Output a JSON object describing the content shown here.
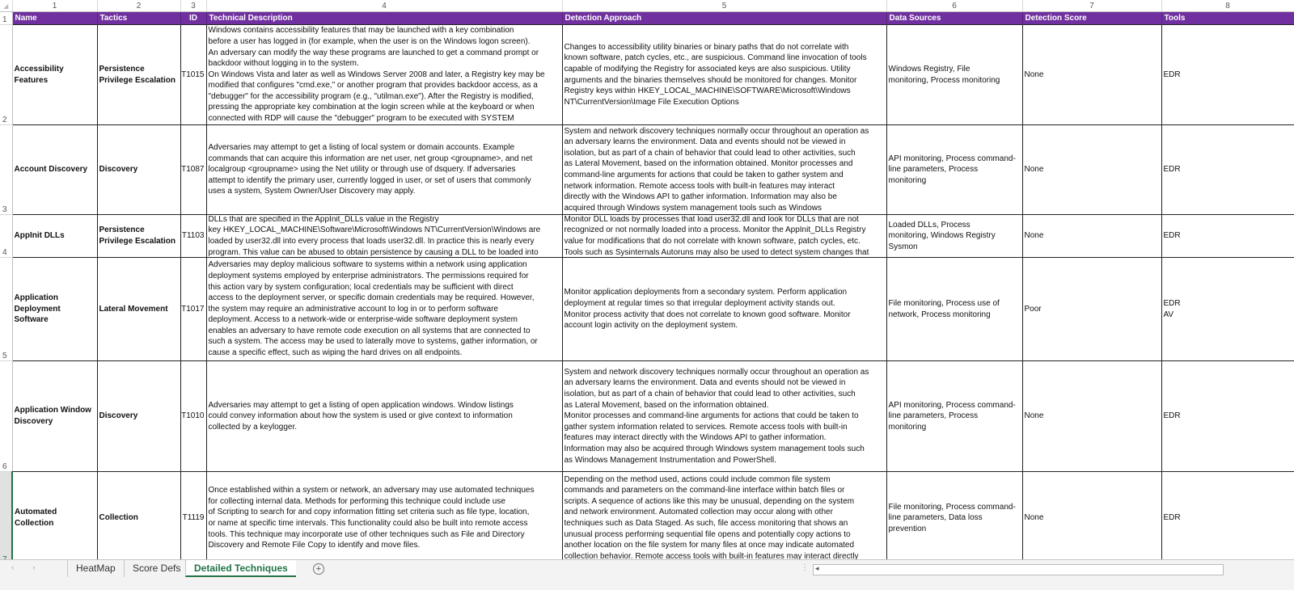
{
  "column_numbers": [
    "1",
    "2",
    "3",
    "4",
    "5",
    "6",
    "7",
    "8"
  ],
  "header_row_number": "1",
  "headers": [
    "Name",
    "Tactics",
    "ID",
    "Technical Description",
    "Detection Approach",
    "Data Sources",
    "Detection Score",
    "Tools"
  ],
  "header_color": "#7030A0",
  "rows": [
    {
      "row_number": "2",
      "name": "Accessibility Features",
      "tactics": "Persistence\nPrivilege Escalation",
      "id": "T1015",
      "description": "Windows contains accessibility features that may be launched with a key combination\nbefore a user has logged in (for example, when the user is on the Windows logon screen).\nAn adversary can modify the way these programs are launched to get a command prompt or\nbackdoor without logging in to the system.\nOn Windows Vista and later as well as Windows Server 2008 and later, a Registry key may be\nmodified that configures \"cmd.exe,\" or another program that provides backdoor access, as a\n\"debugger\" for the accessibility program (e.g., \"utilman.exe\"). After the Registry is modified,\npressing the appropriate key combination at the login screen while at the keyboard or when\nconnected with RDP will cause the \"debugger\" program to be executed with SYSTEM",
      "detection": "Changes to accessibility utility binaries or binary paths that do not correlate with\nknown software, patch cycles, etc., are suspicious. Command line invocation of tools\ncapable of modifying the Registry for associated keys are also suspicious. Utility\narguments and the binaries themselves should be monitored for changes. Monitor\nRegistry keys within HKEY_LOCAL_MACHINE\\SOFTWARE\\Microsoft\\Windows\nNT\\CurrentVersion\\Image File Execution Options",
      "data_sources": "Windows Registry, File\nmonitoring, Process monitoring",
      "score": "None",
      "tools": "EDR"
    },
    {
      "row_number": "3",
      "name": "Account Discovery",
      "tactics": "Discovery",
      "id": "T1087",
      "description": "Adversaries may attempt to get a listing of local system or domain accounts. Example\ncommands that can acquire this information are net user, net group <groupname>, and net\nlocalgroup <groupname> using the Net utility or through use of dsquery. If adversaries\nattempt to identify the primary user, currently logged in user, or set of users that commonly\nuses a system, System Owner/User Discovery may apply.",
      "detection": "System and network discovery techniques normally occur throughout an operation as\nan adversary learns the environment. Data and events should not be viewed in\nisolation, but as part of a chain of behavior that could lead to other activities, such\nas Lateral Movement, based on the information obtained. Monitor processes and\ncommand-line arguments for actions that could be taken to gather system and\nnetwork information. Remote access tools with built-in features may interact\ndirectly with the Windows API to gather information. Information may also be\nacquired through Windows system management tools such as Windows",
      "data_sources": "API monitoring, Process command-\nline parameters, Process\nmonitoring",
      "score": "None",
      "tools": "EDR"
    },
    {
      "row_number": "4",
      "name": "AppInit DLLs",
      "tactics": "Persistence\nPrivilege Escalation",
      "id": "T1103",
      "description": "DLLs that are specified in the AppInit_DLLs value in the Registry\nkey HKEY_LOCAL_MACHINE\\Software\\Microsoft\\Windows NT\\CurrentVersion\\Windows are\nloaded by user32.dll into every process that loads user32.dll. In practice this is nearly every\nprogram. This value can be abused to obtain persistence by causing a DLL to be loaded into",
      "detection": "Monitor DLL loads by processes that load user32.dll and look for DLLs that are not\nrecognized or not normally loaded into a process. Monitor the AppInit_DLLs Registry\nvalue for modifications that do not correlate with known software, patch cycles, etc.\nTools such as Sysinternals Autoruns may also be used to detect system changes that",
      "data_sources": "Loaded DLLs, Process\nmonitoring, Windows Registry\nSysmon",
      "score": "None",
      "tools": "EDR"
    },
    {
      "row_number": "5",
      "name": "Application\nDeployment Software",
      "tactics": "Lateral Movement",
      "id": "T1017",
      "description": "Adversaries may deploy malicious software to systems within a network using application\ndeployment systems employed by enterprise administrators. The permissions required for\nthis action vary by system configuration; local credentials may be sufficient with direct\naccess to the deployment server, or specific domain credentials may be required. However,\nthe system may require an administrative account to log in or to perform software\ndeployment. Access to a network-wide or enterprise-wide software deployment system\nenables an adversary to have remote code execution on all systems that are connected to\nsuch a system. The access may be used to laterally move to systems, gather information, or\ncause a specific effect, such as wiping the hard drives on all endpoints.",
      "detection": "Monitor application deployments from a secondary system. Perform application\ndeployment at regular times so that irregular deployment activity stands out.\nMonitor process activity that does not correlate to known good software. Monitor\naccount login activity on the deployment system.",
      "data_sources": "File monitoring, Process use of\nnetwork, Process monitoring",
      "score": "Poor",
      "tools": "EDR\nAV"
    },
    {
      "row_number": "6",
      "name": "Application Window\nDiscovery",
      "tactics": "Discovery",
      "id": "T1010",
      "description": "Adversaries may attempt to get a listing of open application windows. Window listings\ncould convey information about how the system is used or give context to information\ncollected by a keylogger.",
      "detection": "System and network discovery techniques normally occur throughout an operation as\nan adversary learns the environment. Data and events should not be viewed in\nisolation, but as part of a chain of behavior that could lead to other activities, such\nas Lateral Movement, based on the information obtained.\nMonitor processes and command-line arguments for actions that could be taken to\ngather system information related to services. Remote access tools with built-in\nfeatures may interact directly with the Windows API to gather information.\nInformation may also be acquired through Windows system management tools such\nas Windows Management Instrumentation and PowerShell.",
      "data_sources": "API monitoring, Process command-\nline parameters, Process\nmonitoring",
      "score": "None",
      "tools": "EDR"
    },
    {
      "row_number": "7",
      "name": "Automated Collection",
      "tactics": "Collection",
      "id": "T1119",
      "description": "Once established within a system or network, an adversary may use automated techniques\nfor collecting internal data. Methods for performing this technique could include use\nof Scripting to search for and copy information fitting set criteria such as file type, location,\nor name at specific time intervals. This functionality could also be built into remote access\ntools. This technique may incorporate use of other techniques such as File and Directory\nDiscovery and Remote File Copy to identify and move files.",
      "detection": "Depending on the method used, actions could include common file system\ncommands and parameters on the command-line interface within batch files or\nscripts. A sequence of actions like this may be unusual, depending on the system\nand network environment. Automated collection may occur along with other\ntechniques such as Data Staged. As such, file access monitoring that shows an\nunusual process performing sequential file opens and potentially copy actions to\nanother location on the file system for many files at once may indicate automated\ncollection behavior. Remote access tools with built-in features may interact directly",
      "data_sources": "File monitoring, Process command-\nline parameters, Data loss\nprevention",
      "score": "None",
      "tools": "EDR"
    }
  ],
  "sheet_tabs": [
    {
      "label": "HeatMap",
      "active": false
    },
    {
      "label": "Score Defs",
      "active": false
    },
    {
      "label": "Detailed Techniques",
      "active": true
    }
  ],
  "icons": {
    "add_sheet": "plus-circle-icon",
    "tab_prev": "chevron-left-icon",
    "tab_next": "chevron-right-icon",
    "scroll_left": "scroll-left-arrow-icon"
  },
  "active_tab_color": "#217346"
}
